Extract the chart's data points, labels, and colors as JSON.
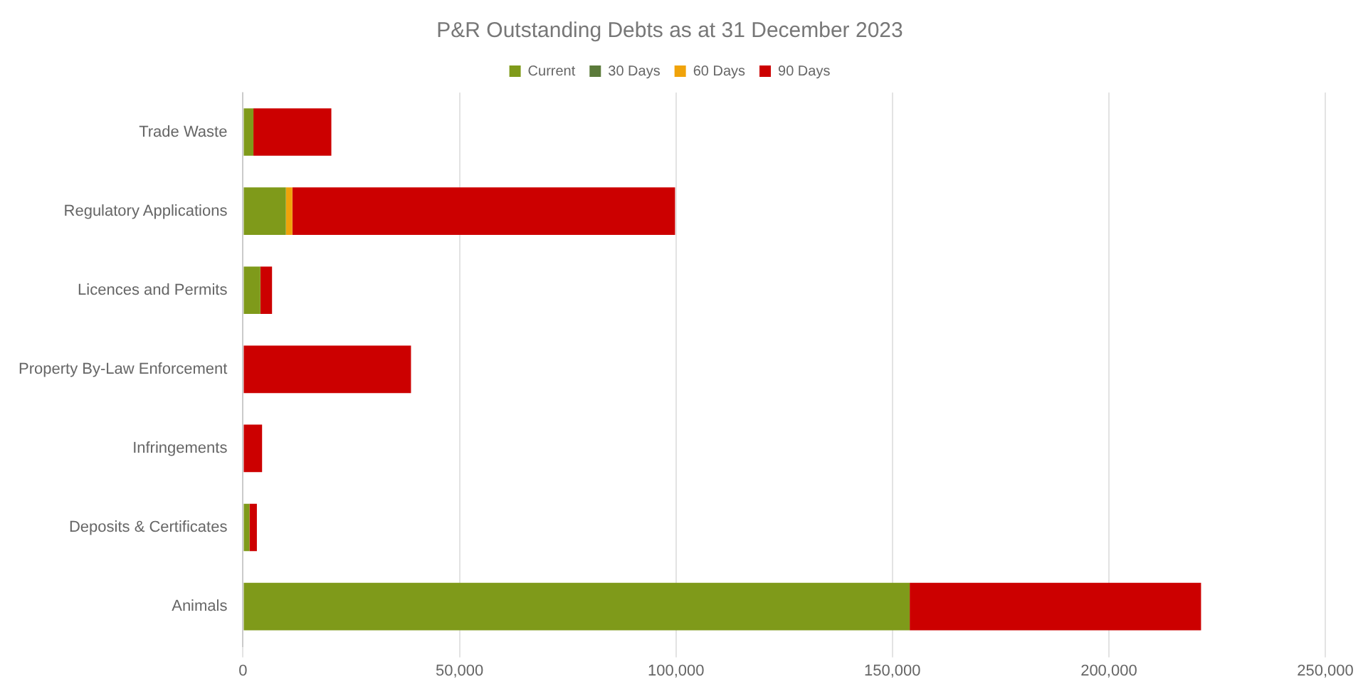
{
  "chart_data": {
    "type": "bar",
    "orientation": "horizontal",
    "stacked": true,
    "title": "P&R Outstanding Debts as at 31 December 2023",
    "categories": [
      "Trade Waste",
      "Regulatory Applications",
      "Licences and Permits",
      "Property By-Law Enforcement",
      "Infringements",
      "Deposits & Certificates",
      "Animals"
    ],
    "series": [
      {
        "name": "Current",
        "color": "#7f9a1a",
        "values": [
          2400,
          9900,
          4000,
          0,
          0,
          1500,
          154000
        ]
      },
      {
        "name": "30 Days",
        "color": "#5b7a3a",
        "values": [
          0,
          0,
          0,
          0,
          0,
          0,
          0
        ]
      },
      {
        "name": "60 Days",
        "color": "#f0a30a",
        "values": [
          0,
          1500,
          0,
          0,
          0,
          0,
          0
        ]
      },
      {
        "name": "90 Days",
        "color": "#cc0000",
        "values": [
          18000,
          88400,
          2700,
          38800,
          4400,
          1700,
          67300
        ]
      }
    ],
    "xlim": [
      0,
      250000
    ],
    "xticks": [
      0,
      {
        "value": 50000,
        "label": "50,000"
      },
      {
        "value": 100000,
        "label": "100,000"
      },
      {
        "value": 150000,
        "label": "150,000"
      },
      {
        "value": 200000,
        "label": "200,000"
      },
      {
        "value": 250000,
        "label": "250,000"
      }
    ],
    "grid": "x",
    "legend": "top"
  }
}
